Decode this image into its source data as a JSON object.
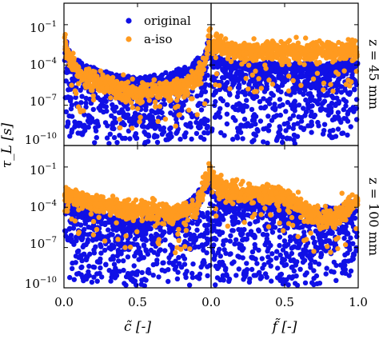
{
  "chart_data": {
    "type": "scatter",
    "ylabel": "τ_L [s]",
    "xlabels": [
      "c̃ [-]",
      "f̃ [-]"
    ],
    "row_labels": [
      "z = 45 mm",
      "z = 100 mm"
    ],
    "y_ticks": [
      -10,
      -7,
      -4,
      -1
    ],
    "y_tick_labels": [
      "10",
      "10",
      "10",
      "10"
    ],
    "y_tick_exponents": [
      "−10",
      "−7",
      "−4",
      "−1"
    ],
    "x_ticks": [
      0.0,
      0.5,
      1.0
    ],
    "x_tick_labels_left": [
      "0.0",
      "0.5",
      "0.0"
    ],
    "x_tick_labels_right": [
      "0.5",
      "1.0"
    ],
    "xlim": [
      0,
      1
    ],
    "ylim_log10": [
      -10,
      0.6
    ],
    "legend": {
      "placement": "top-center",
      "entries": [
        {
          "label": "original",
          "color": "#1010e6"
        },
        {
          "label": "a-iso",
          "color": "#ff9a1f"
        }
      ]
    },
    "panels": [
      {
        "row": 0,
        "col": 0,
        "x": "c̃",
        "series": [
          {
            "name": "original",
            "color": "#1010e6",
            "envelope_x": [
              0.0,
              0.05,
              0.15,
              0.3,
              0.5,
              0.7,
              0.85,
              0.95,
              1.0
            ],
            "upper_log10": [
              -2.0,
              -3.5,
              -4.2,
              -4.8,
              -5.1,
              -4.9,
              -4.2,
              -3.5,
              -1.5
            ],
            "lower_log10": [
              -9.5,
              -9.5,
              -9.8,
              -9.8,
              -9.8,
              -9.8,
              -9.5,
              -9.5,
              -9.0
            ]
          },
          {
            "name": "a-iso",
            "color": "#ff9a1f",
            "curve_x": [
              0.0,
              0.03,
              0.1,
              0.2,
              0.3,
              0.4,
              0.5,
              0.6,
              0.7,
              0.8,
              0.9,
              0.95,
              0.99
            ],
            "curve_log10": [
              -2.0,
              -3.5,
              -4.6,
              -5.2,
              -5.6,
              -5.9,
              -6.0,
              -6.0,
              -5.9,
              -5.6,
              -5.0,
              -4.3,
              -2.0
            ]
          }
        ]
      },
      {
        "row": 0,
        "col": 1,
        "x": "f̃",
        "series": [
          {
            "name": "original",
            "color": "#1010e6",
            "envelope_x": [
              0.0,
              0.25,
              0.5,
              0.75,
              1.0
            ],
            "upper_log10": [
              -3.5,
              -4.0,
              -4.2,
              -4.1,
              -3.8
            ],
            "lower_log10": [
              -9.2,
              -9.8,
              -9.8,
              -9.6,
              -9.0
            ]
          },
          {
            "name": "a-iso",
            "color": "#ff9a1f",
            "curve_x": [
              0.0,
              0.25,
              0.5,
              0.75,
              1.0
            ],
            "curve_log10": [
              -2.6,
              -3.0,
              -3.0,
              -3.0,
              -2.9
            ]
          }
        ]
      },
      {
        "row": 1,
        "col": 0,
        "x": "c̃",
        "series": [
          {
            "name": "original",
            "color": "#1010e6",
            "envelope_x": [
              0.0,
              0.25,
              0.5,
              0.75,
              1.0
            ],
            "upper_log10": [
              -3.8,
              -4.6,
              -5.0,
              -4.8,
              -2.0
            ],
            "lower_log10": [
              -9.5,
              -9.8,
              -9.8,
              -9.8,
              -9.5
            ]
          },
          {
            "name": "a-iso",
            "color": "#ff9a1f",
            "curve_x": [
              0.0,
              0.1,
              0.25,
              0.5,
              0.75,
              0.9,
              1.0
            ],
            "curve_log10": [
              -3.0,
              -3.4,
              -3.8,
              -4.2,
              -4.5,
              -4.0,
              -1.0
            ]
          }
        ]
      },
      {
        "row": 1,
        "col": 1,
        "x": "f̃",
        "series": [
          {
            "name": "original",
            "color": "#1010e6",
            "envelope_x": [
              0.0,
              0.25,
              0.5,
              0.75,
              1.0
            ],
            "upper_log10": [
              -3.2,
              -3.5,
              -4.0,
              -4.3,
              -3.8
            ],
            "lower_log10": [
              -9.5,
              -9.6,
              -9.8,
              -9.6,
              -9.0
            ]
          },
          {
            "name": "a-iso",
            "color": "#ff9a1f",
            "curve_x": [
              0.0,
              0.1,
              0.3,
              0.5,
              0.65,
              0.75,
              0.85,
              1.0
            ],
            "curve_log10": [
              -1.8,
              -2.8,
              -3.0,
              -3.2,
              -4.2,
              -5.0,
              -4.8,
              -3.5
            ]
          }
        ]
      }
    ]
  }
}
